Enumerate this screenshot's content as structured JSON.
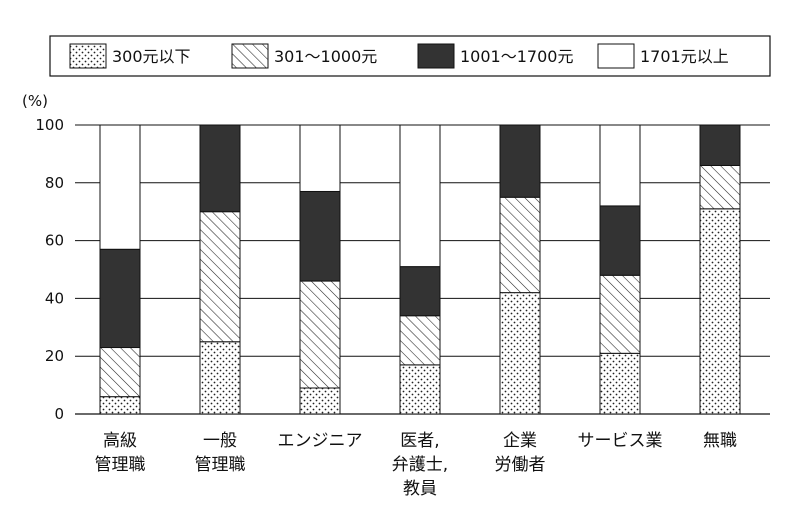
{
  "chart_data": {
    "type": "bar",
    "stacked": true,
    "ylabel": "(%)",
    "ylim": [
      0,
      100
    ],
    "yticks": [
      0,
      20,
      40,
      60,
      80,
      100
    ],
    "grid": true,
    "legend_position": "top",
    "categories": [
      "高級\n管理職",
      "一般\n管理職",
      "エンジニア",
      "医者,\n弁護士,\n教員",
      "企業\n労働者",
      "サービス業",
      "無職"
    ],
    "series": [
      {
        "name": "300元以下",
        "pattern": "dots",
        "values": [
          6,
          25,
          9,
          17,
          42,
          21,
          71
        ]
      },
      {
        "name": "301～1000元",
        "pattern": "hatch",
        "values": [
          17,
          45,
          37,
          17,
          33,
          27,
          15
        ]
      },
      {
        "name": "1001～1700元",
        "pattern": "solid-dark",
        "values": [
          34,
          30,
          31,
          17,
          25,
          24,
          14
        ]
      },
      {
        "name": "1701元以上",
        "pattern": "white",
        "values": [
          43,
          0,
          23,
          49,
          0,
          28,
          0
        ]
      }
    ],
    "colors": {
      "dark": "#333333",
      "line": "#111111",
      "fill_white": "#ffffff"
    }
  }
}
